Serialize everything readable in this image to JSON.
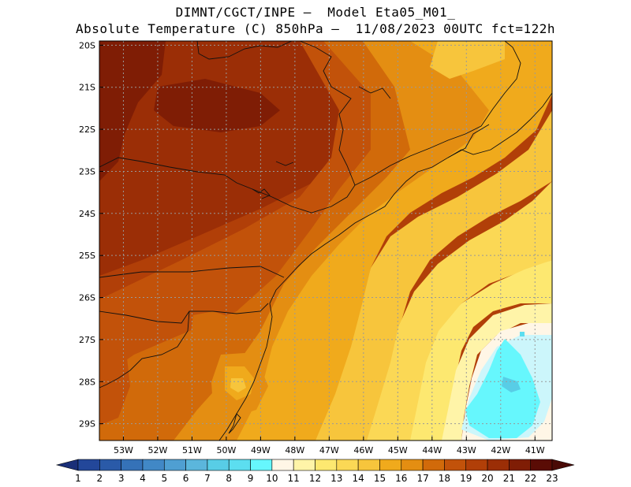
{
  "header": {
    "line1": "DIMNT/CGCT/INPE –  Model Eta05_M01_",
    "line2": "Absolute Temperature (C) 850hPa –  11/08/2023 00UTC fct=122h"
  },
  "axes": {
    "lat_labels": [
      "20S",
      "21S",
      "22S",
      "23S",
      "24S",
      "25S",
      "26S",
      "27S",
      "28S",
      "29S"
    ],
    "lon_labels": [
      "53W",
      "52W",
      "51W",
      "50W",
      "49W",
      "48W",
      "47W",
      "46W",
      "45W",
      "44W",
      "43W",
      "42W",
      "41W"
    ]
  },
  "colorbar": {
    "labels": [
      "1",
      "2",
      "3",
      "4",
      "5",
      "6",
      "7",
      "8",
      "9",
      "10",
      "11",
      "12",
      "13",
      "14",
      "15",
      "16",
      "17",
      "18",
      "19",
      "20",
      "21",
      "22",
      "23"
    ],
    "colors": [
      "#1f3a8a",
      "#23479a",
      "#2a5aa8",
      "#3572b8",
      "#4188c6",
      "#4f9fd2",
      "#5bb6dc",
      "#58cde6",
      "#5cdef0",
      "#66f7fd",
      "#fff6e6",
      "#fff4a8",
      "#fde870",
      "#fbd855",
      "#f7c53c",
      "#f0aa1c",
      "#e48e12",
      "#d16a0a",
      "#c2520a",
      "#b13f08",
      "#9b2e06",
      "#7f1d05",
      "#5a0c05"
    ],
    "under_color": "#1a2f78",
    "over_color": "#4a0a06"
  },
  "map": {
    "lon_range": [
      -53.7,
      -40.5
    ],
    "lat_range": [
      -29.4,
      -19.9
    ],
    "grid": true
  }
}
